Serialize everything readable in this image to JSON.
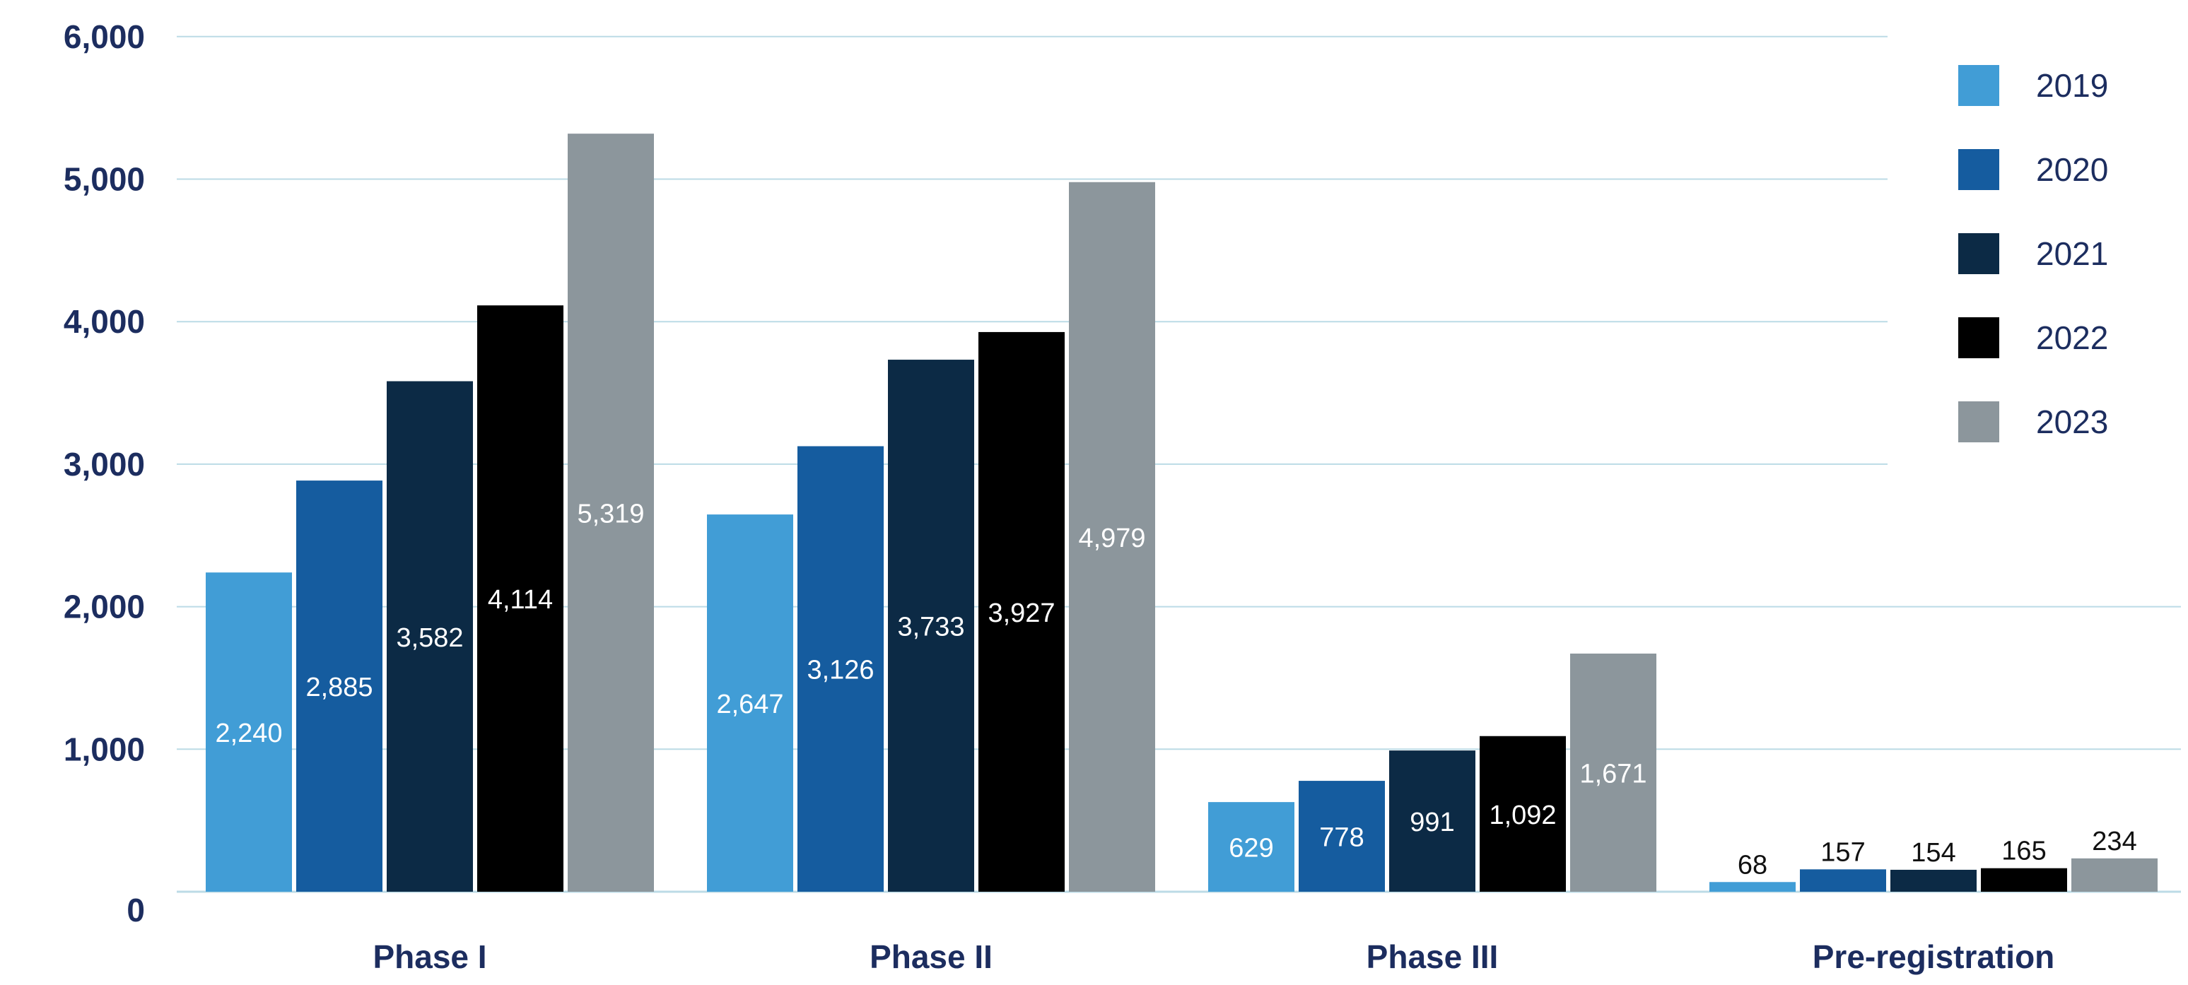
{
  "chart_data": {
    "type": "bar",
    "title": "",
    "xlabel": "",
    "ylabel": "",
    "categories": [
      "Phase I",
      "Phase II",
      "Phase III",
      "Pre-registration"
    ],
    "ylim": [
      0,
      6000
    ],
    "yticks": [
      0,
      1000,
      2000,
      3000,
      4000,
      5000,
      6000
    ],
    "ytick_labels": [
      "0",
      "1,000",
      "2,000",
      "3,000",
      "4,000",
      "5,000",
      "6,000"
    ],
    "grid": true,
    "legend_position": "top-right",
    "series": [
      {
        "name": "2019",
        "color": "#419dd6",
        "values": [
          2240,
          2647,
          629,
          68
        ],
        "labels": [
          "2,240",
          "2,647",
          "629",
          "68"
        ]
      },
      {
        "name": "2020",
        "color": "#155c9f",
        "values": [
          2885,
          3126,
          778,
          157
        ],
        "labels": [
          "2,885",
          "3,126",
          "778",
          "157"
        ]
      },
      {
        "name": "2021",
        "color": "#0c2a45",
        "values": [
          3582,
          3733,
          991,
          154
        ],
        "labels": [
          "3,582",
          "3,733",
          "991",
          "154"
        ]
      },
      {
        "name": "2022",
        "color": "#000000",
        "values": [
          4114,
          3927,
          1092,
          165
        ],
        "labels": [
          "4,114",
          "3,927",
          "1,092",
          "165"
        ]
      },
      {
        "name": "2023",
        "color": "#8c969c",
        "values": [
          5319,
          4979,
          1671,
          234
        ],
        "labels": [
          "5,319",
          "4,979",
          "1,671",
          "234"
        ]
      }
    ],
    "gridline_color": "#bcdbe6",
    "text_color": "#1c2d5f"
  }
}
